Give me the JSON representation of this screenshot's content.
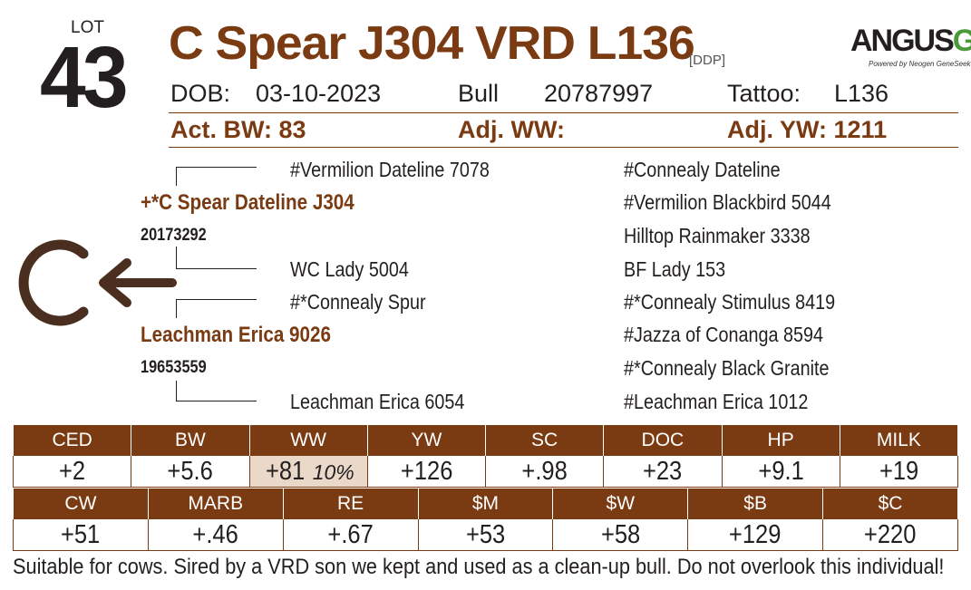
{
  "lot": {
    "label": "LOT",
    "number": "43"
  },
  "animal": {
    "name": "C Spear J304 VRD L136",
    "reg_tag": "[DDP]"
  },
  "logo": {
    "main": "ANGUS",
    "accent": "GS",
    "sub": "Powered by Neogen GeneSeek"
  },
  "info": {
    "dob_label": "DOB:",
    "dob": "03-10-2023",
    "sex": "Bull",
    "reg_number": "20787997",
    "tattoo_label": "Tattoo:",
    "tattoo": "L136"
  },
  "weights": {
    "bw": "Act. BW: 83",
    "ww": "Adj. WW:",
    "yw": "Adj. YW: 1211"
  },
  "pedigree": {
    "sire": "+*C Spear Dateline J304",
    "sire_reg": "20173292",
    "dam": "Leachman Erica 9026",
    "dam_reg": "19653559",
    "sire_sire": "#Vermilion Dateline 7078",
    "sire_dam": "WC Lady 5004",
    "dam_sire": "#*Connealy Spur",
    "dam_dam": "Leachman Erica 6054",
    "ggp": [
      "#Connealy Dateline",
      "#Vermilion Blackbird 5044",
      "Hilltop Rainmaker 3338",
      "BF Lady 153",
      "#*Connealy Stimulus 8419",
      "#Jazza of Conanga 8594",
      "#*Connealy Black Granite",
      "#Leachman Erica 1012"
    ]
  },
  "brand": {
    "letter": "C",
    "arrow": "←"
  },
  "epd_row1": {
    "headers": [
      "CED",
      "BW",
      "WW",
      "YW",
      "SC",
      "DOC",
      "HP",
      "MILK"
    ],
    "values": [
      "+2",
      "+5.6",
      "+81",
      "+126",
      "+.98",
      "+23",
      "+9.1",
      "+19"
    ],
    "ww_pct": "10%"
  },
  "epd_row2": {
    "headers": [
      "CW",
      "MARB",
      "RE",
      "$M",
      "$W",
      "$B",
      "$C"
    ],
    "values": [
      "+51",
      "+.46",
      "+.67",
      "+53",
      "+58",
      "+129",
      "+220"
    ]
  },
  "note": "Suitable for cows. Sired by a VRD son we kept and used as a clean-up bull. Do not overlook this individual!",
  "colors": {
    "brown": "#7a3a12",
    "highlight": "#ead9c8",
    "logo_green": "#4a9a3a"
  }
}
